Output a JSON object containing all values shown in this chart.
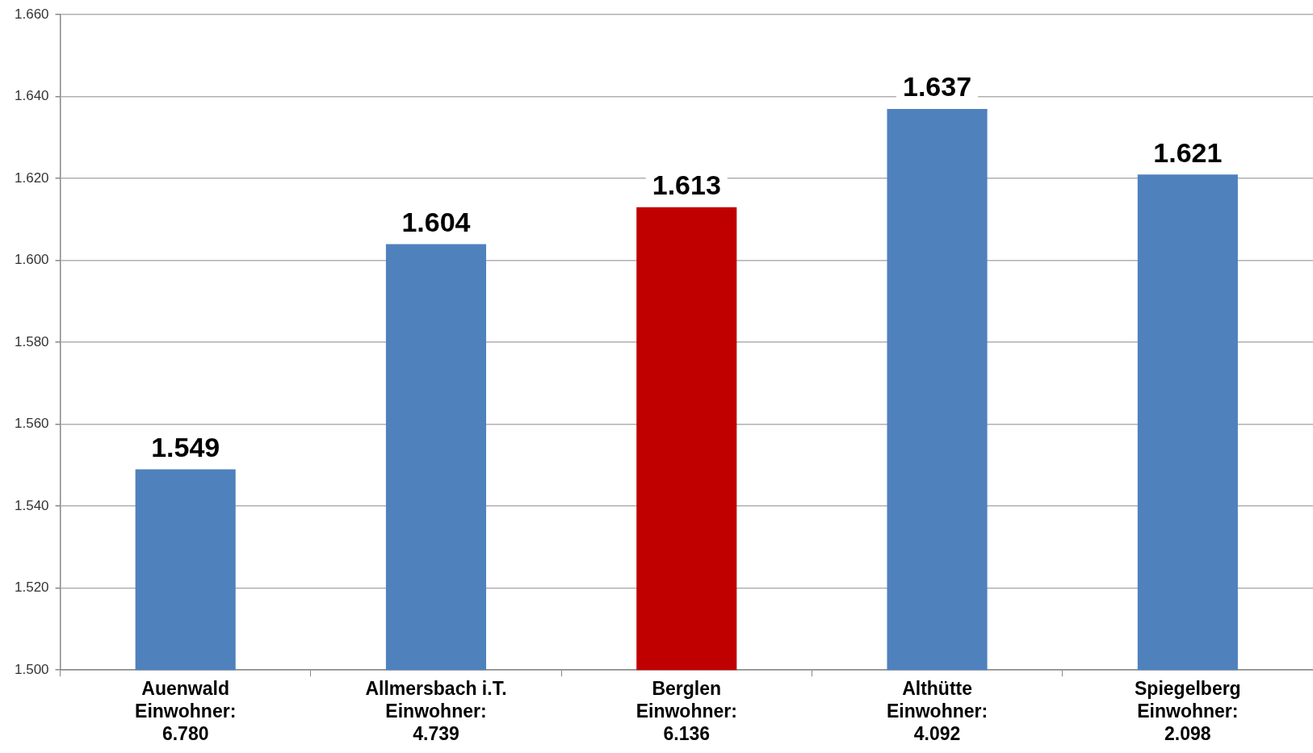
{
  "chart_data": {
    "type": "bar",
    "categories": [
      "Auenwald\nEinwohner:\n6.780",
      "Allmersbach i.T.\nEinwohner:\n4.739",
      "Berglen\nEinwohner:\n6.136",
      "Althütte\nEinwohner:\n4.092",
      "Spiegelberg\nEinwohner:\n2.098"
    ],
    "values": [
      1549,
      1604,
      1613,
      1637,
      1621
    ],
    "colors": [
      "#4f81bd",
      "#4f81bd",
      "#c00000",
      "#4f81bd",
      "#4f81bd"
    ],
    "value_labels": [
      "1.549",
      "1.604",
      "1.613",
      "1.637",
      "1.621"
    ],
    "ylim": [
      1500,
      1660
    ],
    "yticks": [
      {
        "value": 1500,
        "label": "1.500"
      },
      {
        "value": 1520,
        "label": "1.520"
      },
      {
        "value": 1540,
        "label": "1.540"
      },
      {
        "value": 1560,
        "label": "1.560"
      },
      {
        "value": 1580,
        "label": "1.580"
      },
      {
        "value": 1600,
        "label": "1.600"
      },
      {
        "value": 1620,
        "label": "1.620"
      },
      {
        "value": 1640,
        "label": "1.640"
      },
      {
        "value": 1660,
        "label": "1.660"
      }
    ],
    "grid": "y",
    "legend": false
  }
}
